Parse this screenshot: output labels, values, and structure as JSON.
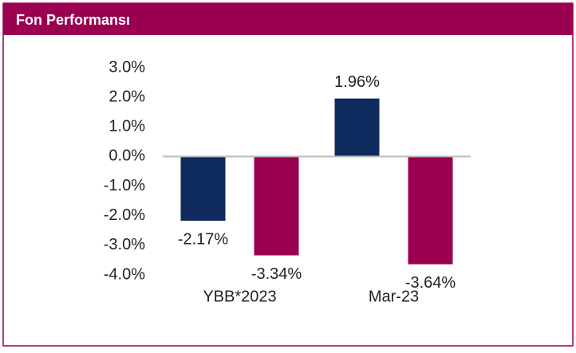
{
  "chart_data": {
    "type": "bar",
    "title": "Fon Performansı",
    "categories": [
      "YBB*2023",
      "Mar-23"
    ],
    "series": [
      {
        "color": "#0f2a5c",
        "values": [
          -2.17,
          1.96
        ],
        "value_labels": [
          "-2.17%",
          "1.96%"
        ]
      },
      {
        "color": "#9b0050",
        "values": [
          -3.34,
          -3.64
        ],
        "value_labels": [
          "-3.34%",
          "-3.64%"
        ]
      }
    ],
    "ylim": [
      -4,
      3
    ],
    "yticks": [
      {
        "value": 3,
        "label": "3.0%"
      },
      {
        "value": 2,
        "label": "2.0%"
      },
      {
        "value": 1,
        "label": "1.0%"
      },
      {
        "value": 0,
        "label": "0.0%"
      },
      {
        "value": -1,
        "label": "-1.0%"
      },
      {
        "value": -2,
        "label": "-2.0%"
      },
      {
        "value": -3,
        "label": "-3.0%"
      },
      {
        "value": -4,
        "label": "-4.0%"
      }
    ]
  }
}
